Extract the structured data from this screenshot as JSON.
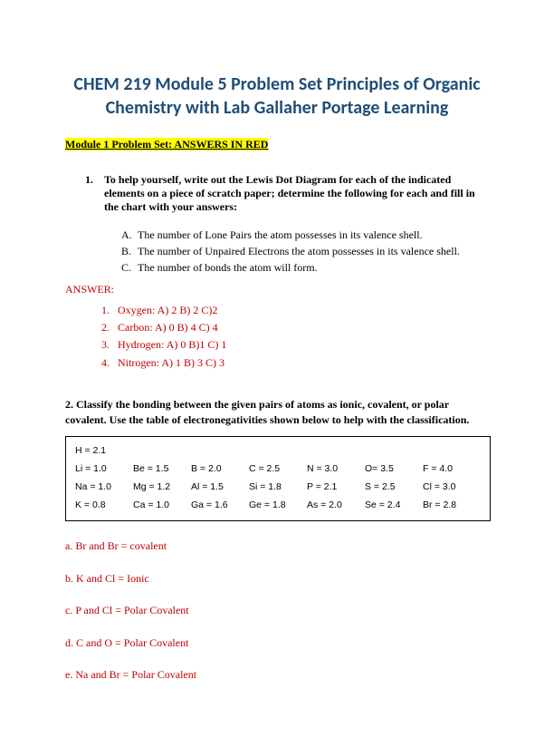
{
  "title": "CHEM 219 Module 5 Problem Set Principles of Organic Chemistry with Lab Gallaher Portage Learning",
  "subtitle": "Module 1 Problem Set: ANSWERS IN RED",
  "q1": {
    "number": "1.",
    "text": "To help yourself, write out the Lewis Dot Diagram for each of the indicated elements on a piece of scratch paper; determine the following for each and fill in the chart with your answers:",
    "parts": [
      {
        "letter": "A.",
        "text": "The number of Lone Pairs the atom possesses in its valence shell."
      },
      {
        "letter": "B.",
        "text": "The number of Unpaired Electrons the atom possesses in its valence shell."
      },
      {
        "letter": "C.",
        "text": "The number of bonds the atom will form."
      }
    ],
    "answer_label": "ANSWER:",
    "answers": [
      {
        "num": "1.",
        "text": "Oxygen: A) 2 B) 2 C)2"
      },
      {
        "num": "2.",
        "text": "Carbon: A) 0 B) 4 C) 4"
      },
      {
        "num": "3.",
        "text": "Hydrogen: A) 0 B)1 C) 1"
      },
      {
        "num": "4.",
        "text": "Nitrogen: A) 1 B) 3 C) 3"
      }
    ]
  },
  "q2": {
    "text": "2. Classify the bonding between the given pairs of atoms as ionic, covalent, or polar covalent. Use the table of electronegativities shown below to help with the classification.",
    "table": {
      "row0": [
        "H = 2.1"
      ],
      "rows": [
        [
          "Li = 1.0",
          "Be = 1.5",
          "B = 2.0",
          "C = 2.5",
          "N = 3.0",
          "O= 3.5",
          "F = 4.0"
        ],
        [
          "Na = 1.0",
          "Mg = 1.2",
          "Al = 1.5",
          "Si = 1.8",
          "P = 2.1",
          "S = 2.5",
          "Cl = 3.0"
        ],
        [
          "K = 0.8",
          "Ca = 1.0",
          "Ga = 1.6",
          "Ge = 1.8",
          "As = 2.0",
          "Se = 2.4",
          "Br = 2.8"
        ]
      ]
    },
    "answers": [
      "a. Br and Br = covalent",
      "b. K and Cl = Ionic",
      "c. P and Cl = Polar Covalent",
      "d. C and O = Polar Covalent",
      "e. Na and Br = Polar Covalent"
    ]
  },
  "colors": {
    "title": "#1f4e79",
    "highlight": "#ffff00",
    "answer": "#c00000"
  }
}
